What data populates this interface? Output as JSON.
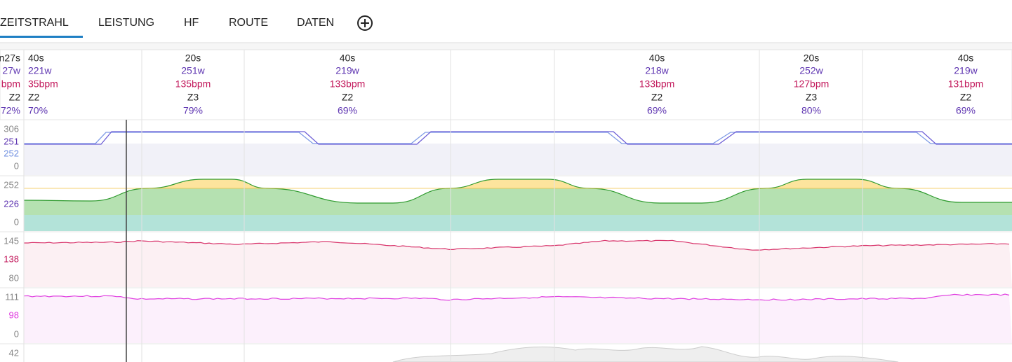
{
  "tabs": [
    "ZEITSTRAHL",
    "LEISTUNG",
    "HF",
    "ROUTE",
    "DATEN"
  ],
  "intervals": [
    {
      "duration": "n27s",
      "power": "27w",
      "hr": "bpm",
      "zone": "Z2",
      "percent": "72%"
    },
    {
      "duration": "40s",
      "power": "221w",
      "hr": "35bpm",
      "zone": "Z2",
      "percent": "70%"
    },
    {
      "duration": "20s",
      "power": "251w",
      "hr": "135bpm",
      "zone": "Z3",
      "percent": "79%"
    },
    {
      "duration": "40s",
      "power": "219w",
      "hr": "133bpm",
      "zone": "Z2",
      "percent": "69%"
    },
    {
      "duration": "40s",
      "power": "218w",
      "hr": "133bpm",
      "zone": "Z2",
      "percent": "69%"
    },
    {
      "duration": "20s",
      "power": "252w",
      "hr": "127bpm",
      "zone": "Z3",
      "percent": "80%"
    },
    {
      "duration": "40s",
      "power": "219w",
      "hr": "131bpm",
      "zone": "Z2",
      "percent": "69%"
    }
  ],
  "charts": [
    {
      "labels": [
        "306",
        "251",
        "252",
        "0"
      ]
    },
    {
      "labels": [
        "252",
        "226",
        "0"
      ]
    },
    {
      "labels": [
        "145",
        "138",
        "80"
      ]
    },
    {
      "labels": [
        "111",
        "98",
        "0"
      ]
    },
    {
      "labels": [
        "42"
      ]
    }
  ]
}
